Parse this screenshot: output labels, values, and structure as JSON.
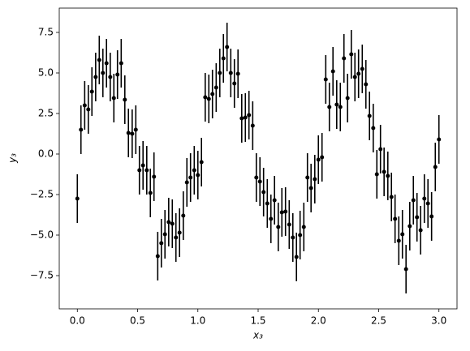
{
  "chart_data": {
    "type": "errorbar",
    "xlabel": "x₃",
    "ylabel": "y₃",
    "x": [
      0,
      0.03,
      0.061,
      0.091,
      0.121,
      0.152,
      0.182,
      0.212,
      0.242,
      0.273,
      0.303,
      0.333,
      0.364,
      0.394,
      0.424,
      0.455,
      0.485,
      0.515,
      0.545,
      0.576,
      0.606,
      0.636,
      0.667,
      0.697,
      0.727,
      0.758,
      0.788,
      0.818,
      0.848,
      0.879,
      0.909,
      0.939,
      0.97,
      1.0,
      1.03,
      1.061,
      1.091,
      1.121,
      1.152,
      1.182,
      1.212,
      1.242,
      1.273,
      1.303,
      1.333,
      1.364,
      1.394,
      1.424,
      1.455,
      1.485,
      1.515,
      1.545,
      1.576,
      1.606,
      1.636,
      1.667,
      1.697,
      1.727,
      1.758,
      1.788,
      1.818,
      1.848,
      1.879,
      1.909,
      1.939,
      1.97,
      2.0,
      2.03,
      2.061,
      2.091,
      2.121,
      2.152,
      2.182,
      2.212,
      2.242,
      2.273,
      2.303,
      2.333,
      2.364,
      2.394,
      2.424,
      2.455,
      2.485,
      2.515,
      2.545,
      2.576,
      2.606,
      2.636,
      2.667,
      2.697,
      2.727,
      2.758,
      2.788,
      2.818,
      2.848,
      2.879,
      2.909,
      2.939,
      2.97,
      3.0
    ],
    "series": [
      {
        "color": "#000000",
        "yerr": 1.5,
        "values": [
          -2.75,
          1.5,
          3.0,
          2.75,
          3.85,
          4.75,
          5.8,
          5.0,
          5.6,
          4.75,
          3.45,
          4.9,
          5.6,
          3.35,
          1.3,
          1.25,
          1.5,
          -1.0,
          -0.7,
          -1.0,
          -2.4,
          -1.4,
          -6.3,
          -5.5,
          -4.95,
          -4.2,
          -4.3,
          -5.15,
          -4.85,
          -3.8,
          -1.75,
          -1.45,
          -1.0,
          -1.3,
          -0.5,
          3.5,
          3.4,
          3.7,
          4.1,
          5.0,
          5.9,
          6.6,
          5.0,
          4.35,
          4.95,
          2.2,
          2.25,
          2.4,
          1.75,
          -1.45,
          -1.7,
          -2.35,
          -3.05,
          -4.0,
          -2.85,
          -4.5,
          -3.6,
          -3.55,
          -4.35,
          -5.15,
          -6.35,
          -5.0,
          -4.5,
          -1.45,
          -2.1,
          -1.55,
          -0.35,
          -0.2,
          4.6,
          2.9,
          5.1,
          3.05,
          2.9,
          5.9,
          3.45,
          6.15,
          4.75,
          4.95,
          5.25,
          4.3,
          2.35,
          1.6,
          -1.25,
          0.3,
          -1.1,
          -1.35,
          -2.65,
          -4.0,
          -5.35,
          -4.95,
          -7.1,
          -4.45,
          -2.85,
          -3.9,
          -4.7,
          -2.75,
          -3.05,
          -3.85,
          -0.8,
          0.9
        ]
      }
    ],
    "xlim": [
      -0.15,
      3.15
    ],
    "ylim": [
      -9.55,
      9.0
    ],
    "xticks": [
      {
        "value": 0,
        "label": "0.0"
      },
      {
        "value": 0.5,
        "label": "0.5"
      },
      {
        "value": 1,
        "label": "1.0"
      },
      {
        "value": 1.5,
        "label": "1.5"
      },
      {
        "value": 2,
        "label": "2.0"
      },
      {
        "value": 2.5,
        "label": "2.5"
      },
      {
        "value": 3,
        "label": "3.0"
      }
    ],
    "yticks": [
      {
        "value": -7.5,
        "label": "−7.5"
      },
      {
        "value": -5,
        "label": "−5.0"
      },
      {
        "value": -2.5,
        "label": "−2.5"
      },
      {
        "value": 0,
        "label": "0.0"
      },
      {
        "value": 2.5,
        "label": "2.5"
      },
      {
        "value": 5,
        "label": "5.0"
      },
      {
        "value": 7.5,
        "label": "7.5"
      }
    ],
    "grid": false
  }
}
